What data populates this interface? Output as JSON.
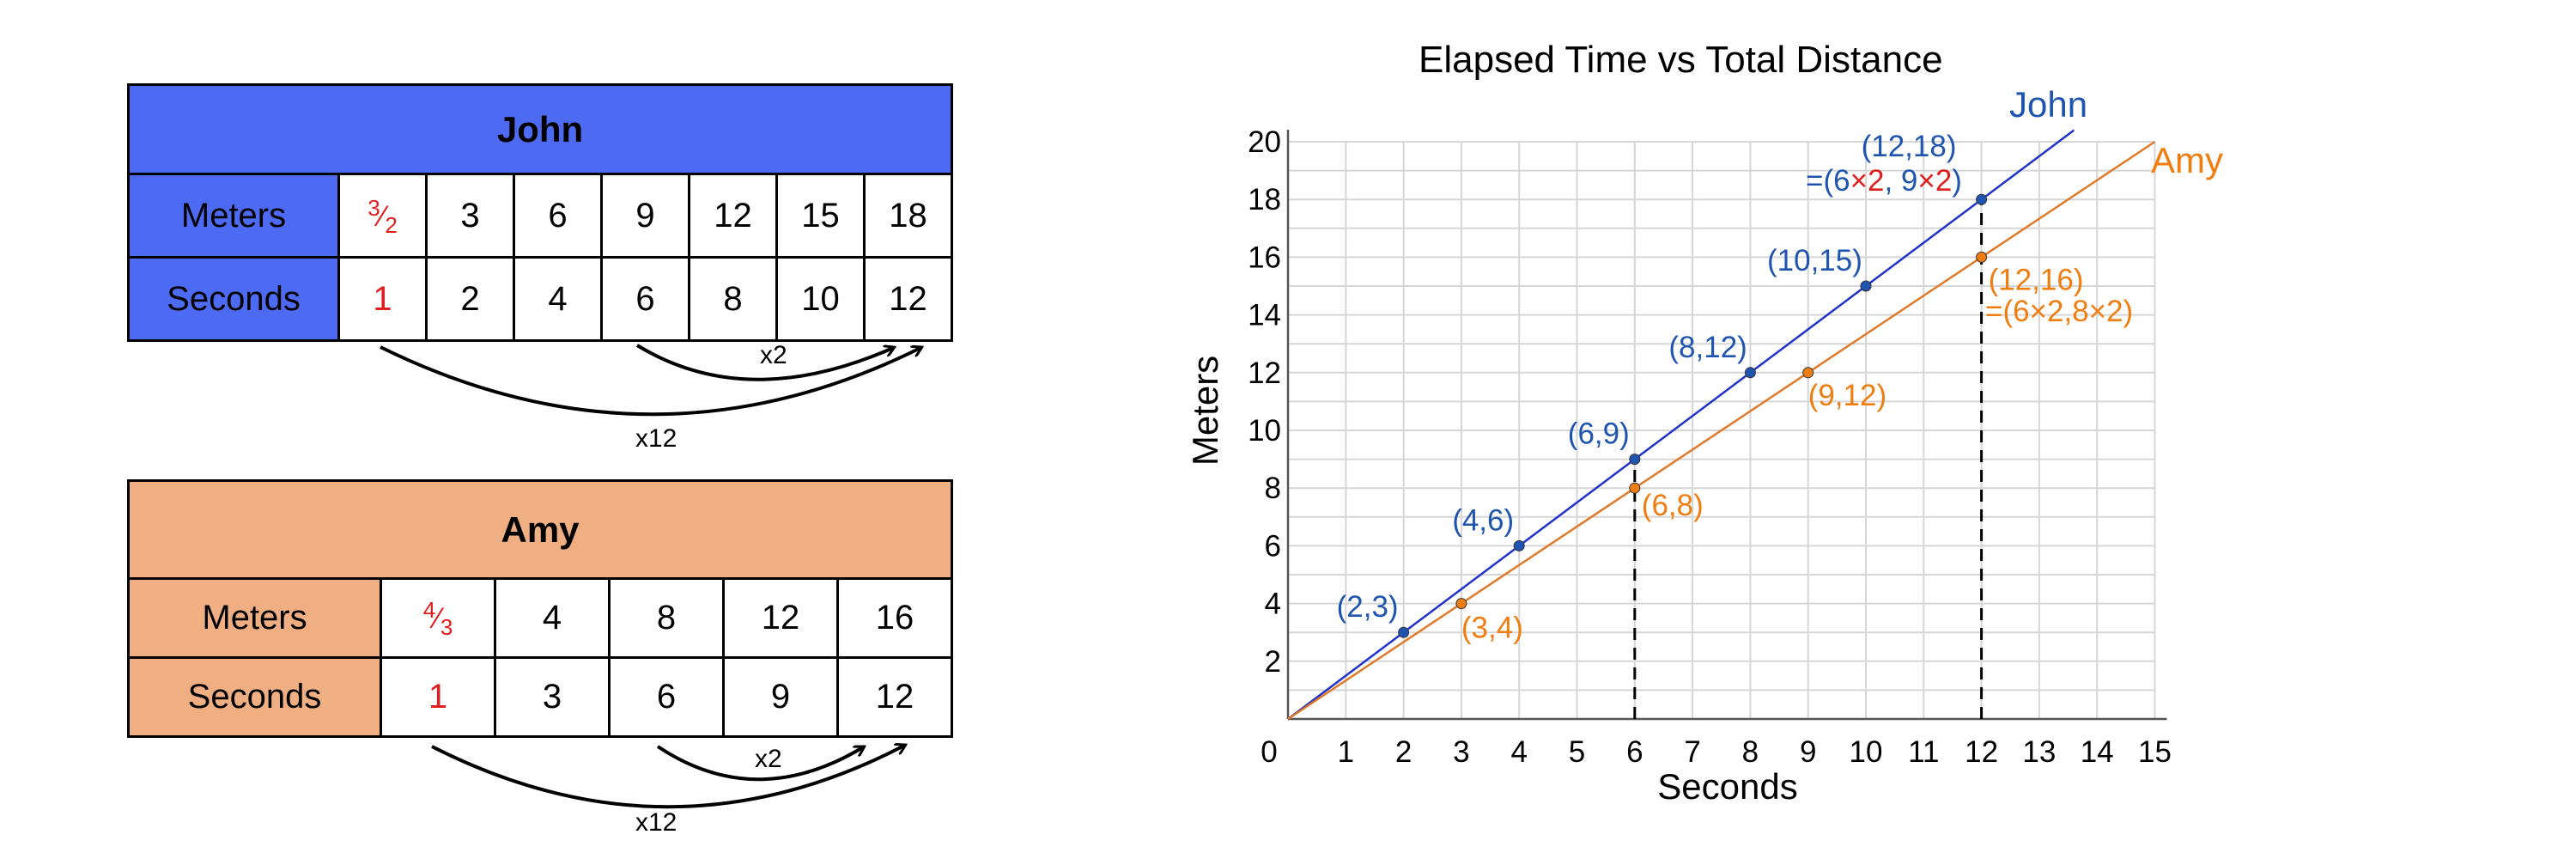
{
  "john_table": {
    "title": "John",
    "row_meters": "Meters",
    "row_seconds": "Seconds",
    "frac_num": "3",
    "frac_den": "2",
    "seconds_first": "1",
    "meters": [
      "3",
      "6",
      "9",
      "12",
      "15",
      "18"
    ],
    "seconds": [
      "2",
      "4",
      "6",
      "8",
      "10",
      "12"
    ],
    "arrow_small": "x2",
    "arrow_big": "x12"
  },
  "amy_table": {
    "title": "Amy",
    "row_meters": "Meters",
    "row_seconds": "Seconds",
    "frac_num": "4",
    "frac_den": "3",
    "seconds_first": "1",
    "meters": [
      "4",
      "8",
      "12",
      "16"
    ],
    "seconds": [
      "3",
      "6",
      "9",
      "12"
    ],
    "arrow_small": "x2",
    "arrow_big": "x12"
  },
  "colors": {
    "john_header": "#4d6bf2",
    "amy_header": "#f0ae83",
    "john_line": "#2233cc",
    "john_label": "#1f55b0",
    "amy_line": "#e07a2a",
    "amy_label": "#f07d10",
    "red": "#e01e1e"
  },
  "chart_data": {
    "type": "line",
    "title": "Elapsed Time vs Total Distance",
    "xlabel": "Seconds",
    "ylabel": "Meters",
    "xlim": [
      0,
      15
    ],
    "ylim": [
      0,
      20
    ],
    "x_ticks": [
      "0",
      "1",
      "2",
      "3",
      "4",
      "5",
      "6",
      "7",
      "8",
      "9",
      "10",
      "11",
      "12",
      "13",
      "14",
      "15"
    ],
    "y_ticks": [
      "2",
      "4",
      "6",
      "8",
      "10",
      "12",
      "14",
      "16",
      "18",
      "20"
    ],
    "grid": true,
    "series": [
      {
        "name": "John",
        "slope": 1.5,
        "points": [
          {
            "x": 2,
            "y": 3,
            "label": "(2,3)"
          },
          {
            "x": 4,
            "y": 6,
            "label": "(4,6)"
          },
          {
            "x": 6,
            "y": 9,
            "label": "(6,9)"
          },
          {
            "x": 8,
            "y": 12,
            "label": "(8,12)"
          },
          {
            "x": 10,
            "y": 15,
            "label": "(10,15)"
          },
          {
            "x": 12,
            "y": 18,
            "label": "(12,18)"
          }
        ]
      },
      {
        "name": "Amy",
        "slope": 1.3333,
        "points": [
          {
            "x": 3,
            "y": 4,
            "label": "(3,4)"
          },
          {
            "x": 6,
            "y": 8,
            "label": "(6,8)"
          },
          {
            "x": 9,
            "y": 12,
            "label": "(9,12)"
          },
          {
            "x": 12,
            "y": 16,
            "label": "(12,16)"
          }
        ]
      }
    ],
    "dashed_verticals": [
      6,
      12
    ],
    "annotations": {
      "john_eq": {
        "prefix": "=(6",
        "a": "×2",
        "mid": ", 9",
        "b": "×2",
        "suffix": ")"
      },
      "amy_eq": "=(6×2,8×2)"
    }
  }
}
